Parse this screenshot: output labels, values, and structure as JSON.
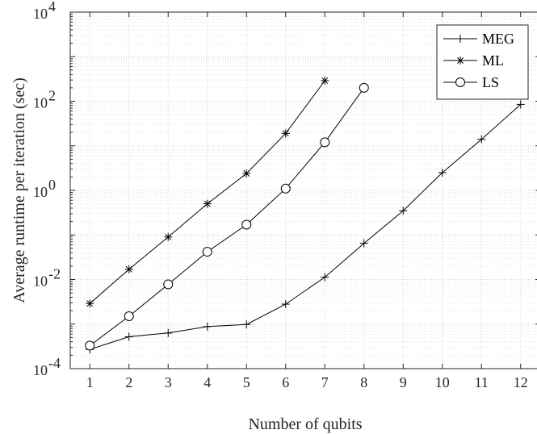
{
  "chart_data": {
    "type": "line",
    "title": "",
    "xlabel": "Number of qubits",
    "ylabel": "Average runtime per iteration (sec)",
    "xscale": "linear",
    "yscale": "log",
    "xlim": [
      0.5,
      12.5
    ],
    "ylim": [
      0.0001,
      10000
    ],
    "grid": true,
    "minor_grid": true,
    "legend_position": "top-right",
    "x_ticks": [
      1,
      2,
      3,
      4,
      5,
      6,
      7,
      8,
      9,
      10,
      11,
      12
    ],
    "x_tick_labels": [
      "1",
      "2",
      "3",
      "4",
      "5",
      "6",
      "7",
      "8",
      "9",
      "10",
      "11",
      "12"
    ],
    "y_ticks": [
      {
        "value": 0.0001,
        "base": "10",
        "exp": "-4"
      },
      {
        "value": 0.01,
        "base": "10",
        "exp": "-2"
      },
      {
        "value": 1,
        "base": "10",
        "exp": "0"
      },
      {
        "value": 100,
        "base": "10",
        "exp": "2"
      },
      {
        "value": 10000,
        "base": "10",
        "exp": "4"
      }
    ],
    "series": [
      {
        "name": "MEG",
        "marker": "plus",
        "color": "#000000",
        "x": [
          1,
          2,
          3,
          4,
          5,
          6,
          7,
          8,
          9,
          10,
          11,
          12
        ],
        "y": [
          0.00027,
          0.00052,
          0.00063,
          0.00088,
          0.00098,
          0.0028,
          0.0113,
          0.065,
          0.35,
          2.5,
          14,
          85
        ]
      },
      {
        "name": "ML",
        "marker": "asterisk",
        "color": "#000000",
        "x": [
          1,
          2,
          3,
          4,
          5,
          6,
          7
        ],
        "y": [
          0.0029,
          0.017,
          0.09,
          0.5,
          2.4,
          19,
          290
        ]
      },
      {
        "name": "LS",
        "marker": "circle",
        "color": "#000000",
        "x": [
          1,
          2,
          3,
          4,
          5,
          6,
          7,
          8
        ],
        "y": [
          0.00033,
          0.0015,
          0.0078,
          0.042,
          0.17,
          1.1,
          12,
          200
        ]
      }
    ]
  }
}
